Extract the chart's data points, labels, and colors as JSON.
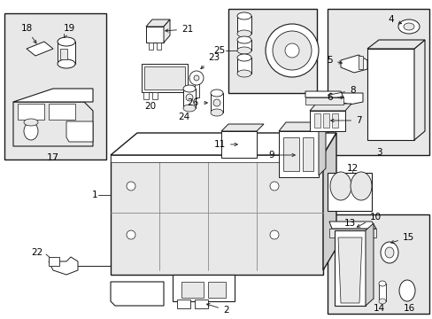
{
  "figsize": [
    4.89,
    3.6
  ],
  "dpi": 100,
  "bg": "#ffffff",
  "lc": "#1a1a1a",
  "shade": "#e8e8e8",
  "white": "#ffffff",
  "gray": "#c8c8c8",
  "darkgray": "#aaaaaa"
}
